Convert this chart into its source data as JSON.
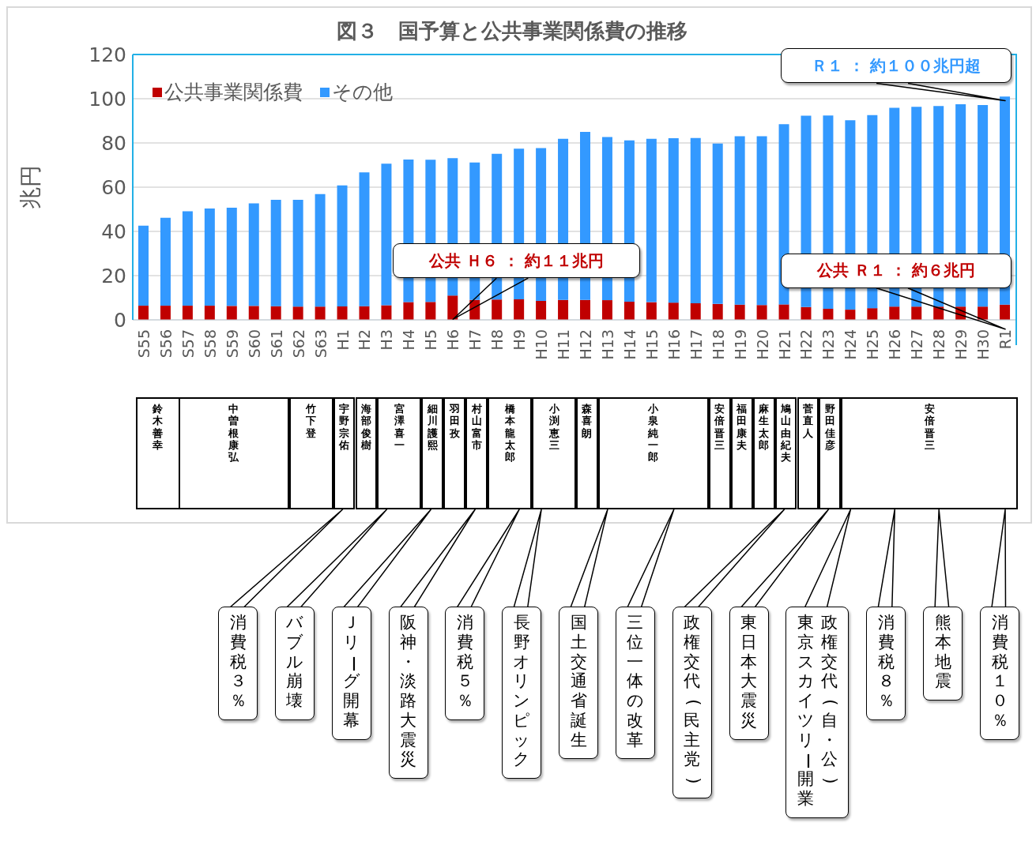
{
  "chart_data": [
    {
      "type": "bar",
      "title": "図３　国予算と公共事業関係費の推移",
      "ylabel": "兆円",
      "stacked": true,
      "grid": "y",
      "legend": "top left",
      "categories": [
        "S55",
        "S56",
        "S57",
        "S58",
        "S59",
        "S60",
        "S61",
        "S62",
        "S63",
        "H1",
        "H2",
        "H3",
        "H4",
        "H5",
        "H6",
        "H7",
        "H8",
        "H9",
        "H10",
        "H11",
        "H12",
        "H13",
        "H14",
        "H15",
        "H16",
        "H17",
        "H18",
        "H19",
        "H20",
        "H21",
        "H22",
        "H23",
        "H24",
        "H25",
        "H26",
        "H27",
        "H28",
        "H29",
        "H30",
        "R1"
      ],
      "ylim": [
        0,
        120
      ],
      "yticks": [
        0,
        20,
        40,
        60,
        80,
        100,
        120
      ],
      "series": [
        {
          "name": "公共事業関係費",
          "color": "#c00000",
          "values": [
            6.4,
            6.4,
            6.4,
            6.4,
            6.3,
            6.3,
            6.2,
            6.0,
            6.0,
            6.1,
            6.2,
            6.6,
            8.0,
            8.1,
            11.0,
            9.0,
            9.2,
            9.3,
            8.6,
            9.0,
            9.0,
            8.9,
            8.2,
            8.0,
            7.8,
            7.5,
            7.2,
            6.9,
            6.7,
            7.0,
            5.8,
            5.0,
            4.6,
            5.3,
            6.0,
            6.0,
            6.0,
            6.0,
            6.0,
            6.9
          ]
        },
        {
          "name": "その他",
          "color": "#3399ff",
          "values": [
            36.2,
            39.8,
            42.7,
            44.0,
            44.4,
            46.4,
            48.1,
            48.3,
            50.9,
            54.7,
            60.5,
            64.0,
            64.5,
            64.3,
            62.1,
            62.2,
            65.9,
            68.1,
            69.1,
            72.9,
            76.0,
            73.8,
            73.0,
            73.9,
            74.3,
            74.7,
            72.5,
            76.1,
            76.3,
            81.5,
            86.5,
            87.4,
            85.7,
            87.3,
            89.9,
            90.3,
            90.7,
            91.5,
            91.1,
            94.1
          ]
        }
      ],
      "annotations": [
        {
          "text": "Ｒ１ ： 約１００兆円超",
          "x": "R1",
          "y": 101
        },
        {
          "text": "公共 Ｈ６ ： 約１１兆円",
          "x": "H6",
          "y": 11
        },
        {
          "text": "公共 Ｒ１ ： 約６兆円",
          "x": "R1",
          "y": 6.9
        }
      ]
    },
    {
      "type": "other",
      "annotations": [
        {
          "text": "鈴木善幸",
          "x": "S55"
        },
        {
          "text": "中曽根康弘",
          "x": "S57"
        },
        {
          "text": "竹下登",
          "x": "S62"
        },
        {
          "text": "宇野宗佑",
          "x": "H1"
        },
        {
          "text": "海部俊樹",
          "x": "H2"
        },
        {
          "text": "宮澤喜一",
          "x": "H3"
        },
        {
          "text": "細川護熙",
          "x": "H5"
        },
        {
          "text": "羽田孜",
          "x": "H6"
        },
        {
          "text": "村山富市",
          "x": "H7"
        },
        {
          "text": "橋本龍太郎",
          "x": "H8"
        },
        {
          "text": "小渕恵三",
          "x": "H10"
        },
        {
          "text": "森喜朗",
          "x": "H12"
        },
        {
          "text": "小泉純一郎",
          "x": "H13"
        },
        {
          "text": "安倍晋三",
          "x": "H18"
        },
        {
          "text": "福田康夫",
          "x": "H19"
        },
        {
          "text": "麻生太郎",
          "x": "H20"
        },
        {
          "text": "鳩山由紀夫",
          "x": "H21"
        },
        {
          "text": "菅直人",
          "x": "H22"
        },
        {
          "text": "野田佳彦",
          "x": "H23"
        },
        {
          "text": "安倍晋三",
          "x": "H24"
        }
      ]
    },
    {
      "type": "other",
      "annotations": [
        {
          "text": "消費税３％",
          "x": "H1"
        },
        {
          "text": "バブル崩壊",
          "x": "H3"
        },
        {
          "text": "Ｊリーグ開幕",
          "x": "H5"
        },
        {
          "text": "阪神・淡路大震災",
          "x": "H7"
        },
        {
          "text": "消費税５％",
          "x": "H9"
        },
        {
          "text": "長野オリンピック",
          "x": "H10"
        },
        {
          "text": "国土交通省誕生",
          "x": "H13"
        },
        {
          "text": "三位一体の改革",
          "x": "H16"
        },
        {
          "text": "政権交代(民主党)",
          "x": "H21"
        },
        {
          "text": "東日本大震災",
          "x": "H23"
        },
        {
          "text": "政権交代(自・公)",
          "x": "H24"
        },
        {
          "text": "東京スカイツリー開業",
          "x": "H24"
        },
        {
          "text": "消費税８％",
          "x": "H26"
        },
        {
          "text": "熊本地震",
          "x": "H28"
        },
        {
          "text": "消費税１０％",
          "x": "R1"
        }
      ]
    }
  ]
}
